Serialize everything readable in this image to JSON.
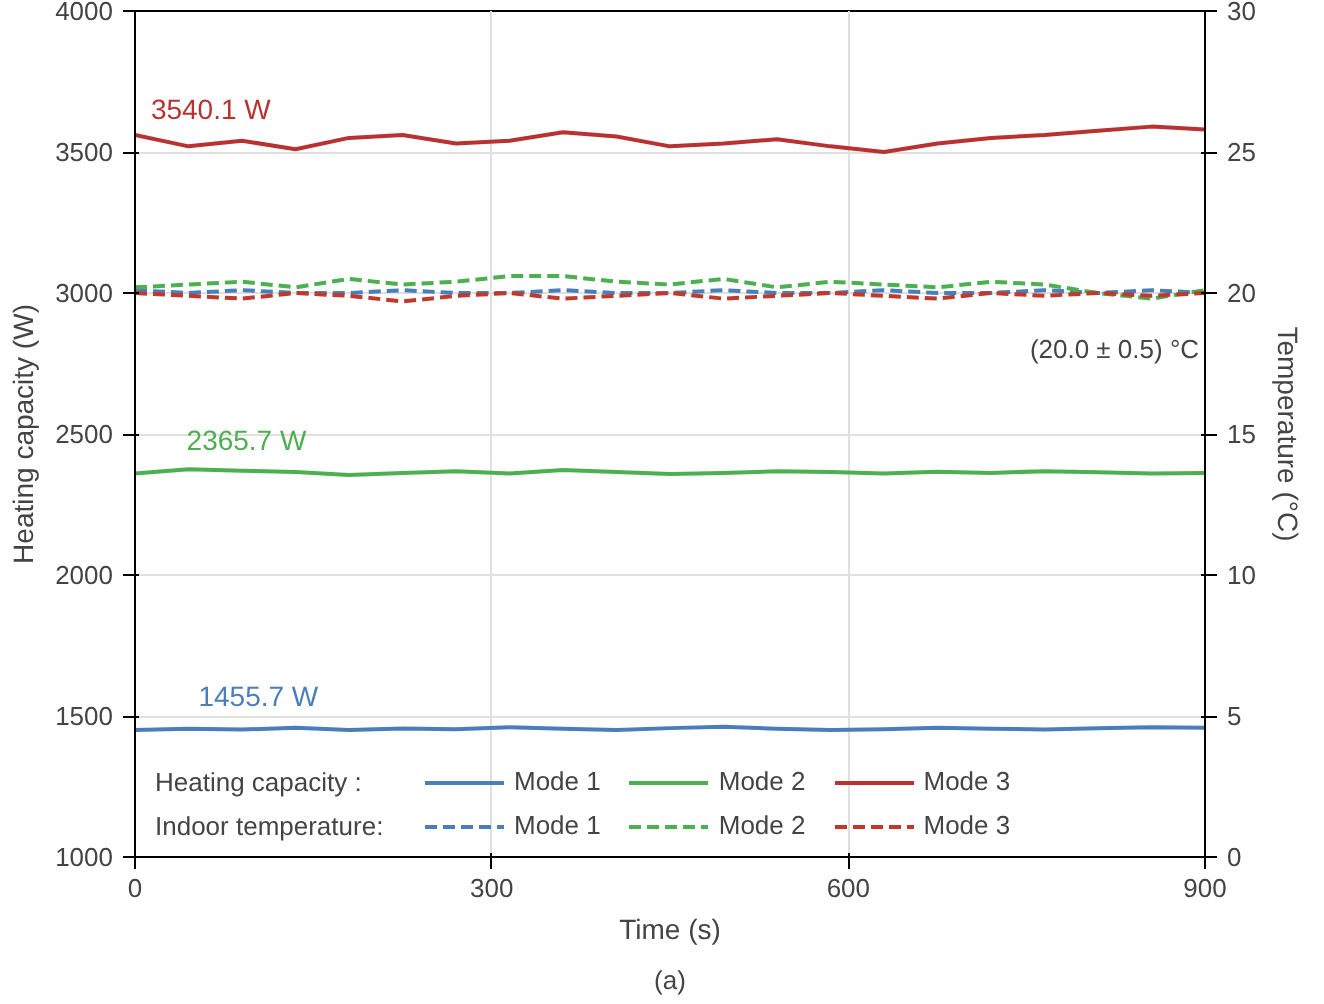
{
  "chart_data": {
    "type": "line",
    "xlabel": "Time (s)",
    "ylabel": "Heating capacity (W)",
    "y2label": "Temperature (°C)",
    "xlim": [
      0,
      900
    ],
    "xticks": [
      0,
      300,
      600,
      900
    ],
    "ylim": [
      1000,
      4000
    ],
    "yticks": [
      1000,
      1500,
      2000,
      2500,
      3000,
      3500,
      4000
    ],
    "y2lim": [
      0,
      30
    ],
    "y2ticks": [
      0,
      5,
      10,
      15,
      20,
      25,
      30
    ],
    "grid": true,
    "legend": "bottom",
    "marker": "none",
    "x": [
      0,
      45,
      90,
      135,
      180,
      225,
      270,
      315,
      360,
      405,
      450,
      495,
      540,
      585,
      630,
      675,
      720,
      765,
      810,
      855,
      900
    ],
    "series": [
      {
        "name": "Mode 1",
        "color": "#4a7ebb",
        "line_style": "solid",
        "values": [
          1450,
          1455,
          1452,
          1458,
          1450,
          1456,
          1453,
          1460,
          1455,
          1450,
          1457,
          1462,
          1455,
          1450,
          1453,
          1458,
          1455,
          1452,
          1457,
          1460,
          1458
        ]
      },
      {
        "name": "Mode 2",
        "color": "#4caf50",
        "line_style": "solid",
        "values": [
          2360,
          2375,
          2370,
          2365,
          2355,
          2362,
          2368,
          2360,
          2372,
          2365,
          2358,
          2362,
          2368,
          2365,
          2360,
          2366,
          2362,
          2368,
          2364,
          2360,
          2362
        ]
      },
      {
        "name": "Mode 3",
        "color": "#b83232",
        "line_style": "solid",
        "values": [
          3560,
          3520,
          3540,
          3510,
          3550,
          3560,
          3530,
          3540,
          3570,
          3555,
          3520,
          3530,
          3545,
          3520,
          3500,
          3530,
          3550,
          3560,
          3575,
          3590,
          3580
        ]
      },
      {
        "name": "Mode 1",
        "color": "#4a7ebb",
        "line_style": "dashed",
        "axis": "y2",
        "values": [
          20.1,
          20.0,
          20.1,
          20.0,
          20.0,
          20.1,
          20.0,
          20.0,
          20.1,
          20.0,
          20.0,
          20.1,
          20.0,
          20.0,
          20.1,
          20.0,
          20.0,
          20.1,
          20.0,
          20.1,
          20.0
        ]
      },
      {
        "name": "Mode 2",
        "color": "#4caf50",
        "line_style": "dashed",
        "axis": "y2",
        "values": [
          20.2,
          20.3,
          20.4,
          20.2,
          20.5,
          20.3,
          20.4,
          20.6,
          20.6,
          20.4,
          20.3,
          20.5,
          20.2,
          20.4,
          20.3,
          20.2,
          20.4,
          20.3,
          20.0,
          19.8,
          20.1
        ]
      },
      {
        "name": "Mode 3",
        "color": "#c0392b",
        "line_style": "dashed",
        "axis": "y2",
        "values": [
          20.0,
          19.9,
          19.8,
          20.0,
          19.9,
          19.7,
          19.9,
          20.0,
          19.8,
          19.9,
          20.0,
          19.8,
          19.9,
          20.0,
          19.9,
          19.8,
          20.0,
          19.9,
          20.0,
          19.9,
          20.0
        ]
      }
    ],
    "annotations": [
      "Heating capacity :",
      "Indoor temperature:",
      "(20.0 ± 0.5) °C",
      "(a)",
      {
        "text": "3540.1 W",
        "x": 10,
        "y": 3540.1
      },
      {
        "text": "2365.7 W",
        "x": 40,
        "y": 2365.7
      },
      {
        "text": "1455.7 W",
        "x": 50,
        "y": 1455.7
      }
    ]
  }
}
